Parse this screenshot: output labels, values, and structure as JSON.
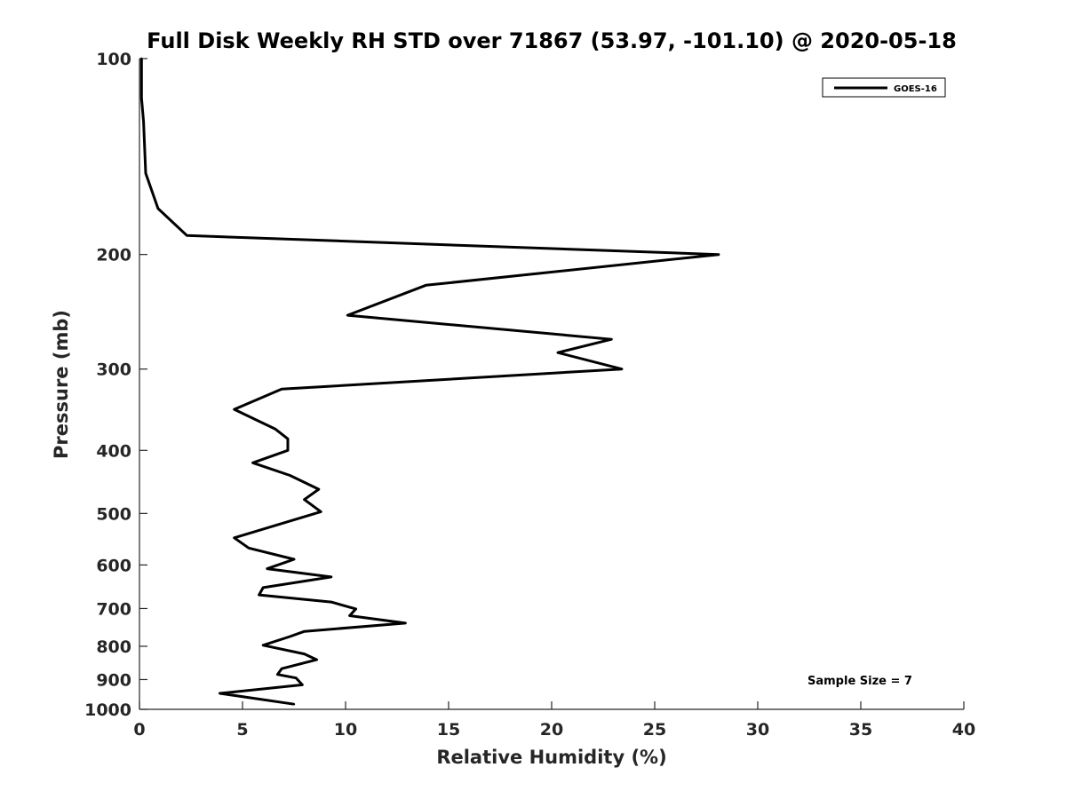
{
  "chart_data": {
    "type": "line",
    "title": "Full Disk Weekly RH STD over 71867 (53.97, -101.10) @ 2020-05-18",
    "xlabel": "Relative Humidity (%)",
    "ylabel": "Pressure (mb)",
    "xlim": [
      0,
      40
    ],
    "ylim": [
      100,
      1000
    ],
    "y_scale": "log",
    "y_reversed": true,
    "x_ticks": [
      0,
      5,
      10,
      15,
      20,
      25,
      30,
      35,
      40
    ],
    "x_tick_labels": [
      "0",
      "5",
      "10",
      "15",
      "20",
      "25",
      "30",
      "35",
      "40"
    ],
    "y_ticks": [
      100,
      200,
      300,
      400,
      500,
      600,
      700,
      800,
      900,
      1000
    ],
    "y_tick_labels": [
      "100",
      "200",
      "300",
      "400",
      "500",
      "600",
      "700",
      "800",
      "900",
      "1000"
    ],
    "grid": false,
    "legend": {
      "placement": "top-right",
      "entries": [
        "GOES-16"
      ]
    },
    "annotation": "Sample Size = 7",
    "series": [
      {
        "name": "GOES-16",
        "color": "#000000",
        "points": [
          [
            0.1,
            100
          ],
          [
            0.1,
            115
          ],
          [
            0.2,
            125
          ],
          [
            0.3,
            150
          ],
          [
            0.9,
            170
          ],
          [
            2.3,
            187
          ],
          [
            28.1,
            200
          ],
          [
            13.9,
            223
          ],
          [
            10.1,
            248
          ],
          [
            22.9,
            270
          ],
          [
            20.3,
            283
          ],
          [
            23.4,
            300
          ],
          [
            6.9,
            322
          ],
          [
            4.6,
            346
          ],
          [
            6.6,
            371
          ],
          [
            7.2,
            384
          ],
          [
            7.2,
            400
          ],
          [
            5.5,
            418
          ],
          [
            7.3,
            437
          ],
          [
            8.7,
            459
          ],
          [
            8.0,
            476
          ],
          [
            8.8,
            497
          ],
          [
            4.6,
            545
          ],
          [
            5.3,
            565
          ],
          [
            7.5,
            588
          ],
          [
            6.2,
            608
          ],
          [
            9.3,
            626
          ],
          [
            6.0,
            650
          ],
          [
            5.8,
            667
          ],
          [
            9.3,
            684
          ],
          [
            10.5,
            701
          ],
          [
            10.2,
            718
          ],
          [
            12.9,
            737
          ],
          [
            8.0,
            759
          ],
          [
            7.3,
            773
          ],
          [
            6.0,
            797
          ],
          [
            8.0,
            822
          ],
          [
            8.6,
            839
          ],
          [
            6.9,
            866
          ],
          [
            6.7,
            884
          ],
          [
            7.6,
            895
          ],
          [
            7.9,
            917
          ],
          [
            3.9,
            945
          ],
          [
            7.5,
            982
          ]
        ]
      }
    ]
  }
}
